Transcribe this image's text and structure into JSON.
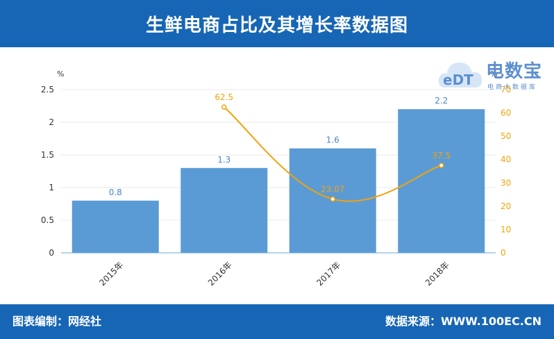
{
  "header": {
    "title": "生鲜电商占比及其增长率数据图"
  },
  "footer": {
    "left": "图表编制：网经社",
    "right": "数据来源：WWW.100EC.CN"
  },
  "logo": {
    "brand": "电数宝",
    "sub": "电商大数据库",
    "mark": "eDT"
  },
  "chart_data": {
    "type": "bar",
    "categories": [
      "2015年",
      "2016年",
      "2017年",
      "2018年"
    ],
    "series": [
      {
        "type": "bar",
        "axis": "left",
        "values": [
          0.8,
          1.3,
          1.6,
          2.2
        ],
        "color": "#5b9bd5"
      },
      {
        "type": "line",
        "axis": "right",
        "values": [
          null,
          62.5,
          23.07,
          37.5
        ],
        "color": "#f0a30a"
      }
    ],
    "left_axis": {
      "unit": "%",
      "ylim": [
        0,
        2.5
      ],
      "ticks": [
        "0",
        "0.5",
        "1",
        "1.5",
        "2",
        "2.5"
      ]
    },
    "right_axis": {
      "unit": "%",
      "ylim": [
        0,
        70
      ],
      "ticks": [
        "0",
        "10",
        "20",
        "30",
        "40",
        "50",
        "60",
        "70"
      ]
    },
    "bar_labels": [
      "0.8",
      "1.3",
      "1.6",
      "2.2"
    ],
    "line_labels": [
      "",
      "62.5",
      "23.07",
      "37.5"
    ],
    "grid": true,
    "legend": "none"
  }
}
